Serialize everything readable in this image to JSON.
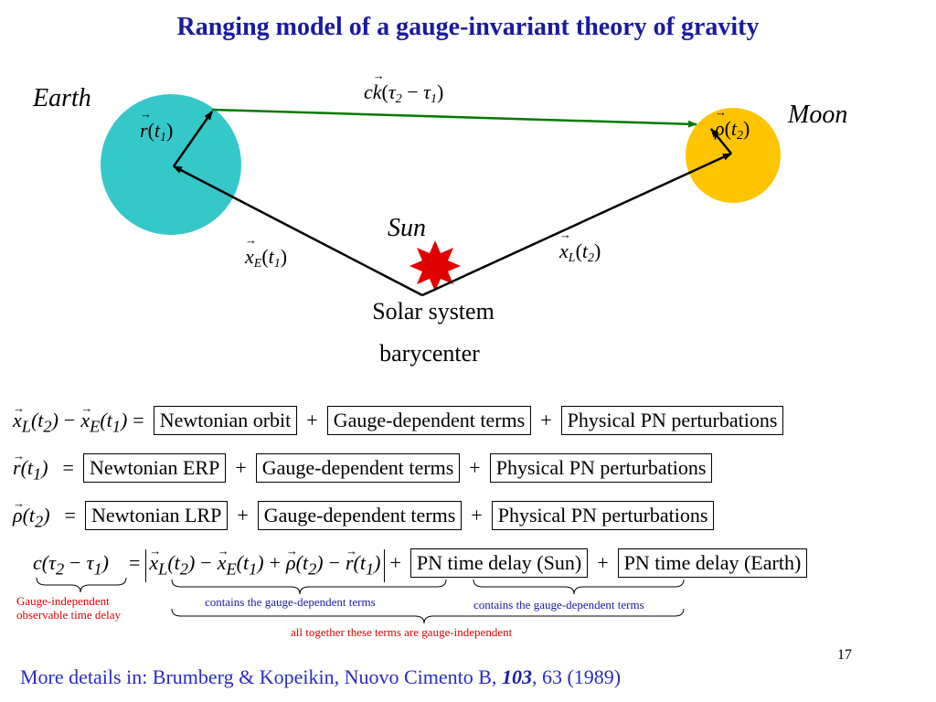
{
  "title": "Ranging model of a gauge-invariant theory of gravity",
  "diagram": {
    "earth_label": "Earth",
    "moon_label": "Moon",
    "sun_label": "Sun",
    "barycenter_label_line1": "Solar system",
    "barycenter_label_line2": "barycenter",
    "light_path_label": "ck(τ2 − τ1)",
    "earth_vector_label": "r(t1)",
    "moon_vector_label": "ρ(t2)",
    "earth_position_label": "xE(t1)",
    "moon_position_label": "xL(t2)",
    "colors": {
      "earth": "#35c8c8",
      "moon": "#ffc400",
      "sun": "#e00000",
      "light_path": "#007a00"
    }
  },
  "equations": {
    "row1_lhs": "xL(t2) − xE(t1) =",
    "row1_terms": [
      "Newtonian orbit",
      "Gauge-dependent terms",
      "Physical PN perturbations"
    ],
    "row2_lhs": "r(t1) =",
    "row2_terms": [
      "Newtonian ERP",
      "Gauge-dependent terms",
      "Physical PN perturbations"
    ],
    "row3_lhs": "ρ(t2) =",
    "row3_terms": [
      "Newtonian LRP",
      "Gauge-dependent terms",
      "Physical PN perturbations"
    ],
    "row4_lhs": "c(τ2 − τ1)",
    "row4_abs": "xL(t2) − xE(t1) + ρ(t2) − r(t1)",
    "row4_terms": [
      "PN time delay (Sun)",
      "PN time delay (Earth)"
    ],
    "brace_note_lhs": "Gauge-independent observable time delay",
    "brace_note_abs": "contains the gauge-dependent terms",
    "brace_note_sun": "contains the gauge-dependent terms",
    "brace_note_all": "all together these terms are gauge-independent"
  },
  "footer": {
    "prefix": "More details in: Brumberg & Kopeikin, Nuovo Cimento B, ",
    "volume": "103",
    "suffix": ", 63 (1989)"
  },
  "page_number": "17"
}
